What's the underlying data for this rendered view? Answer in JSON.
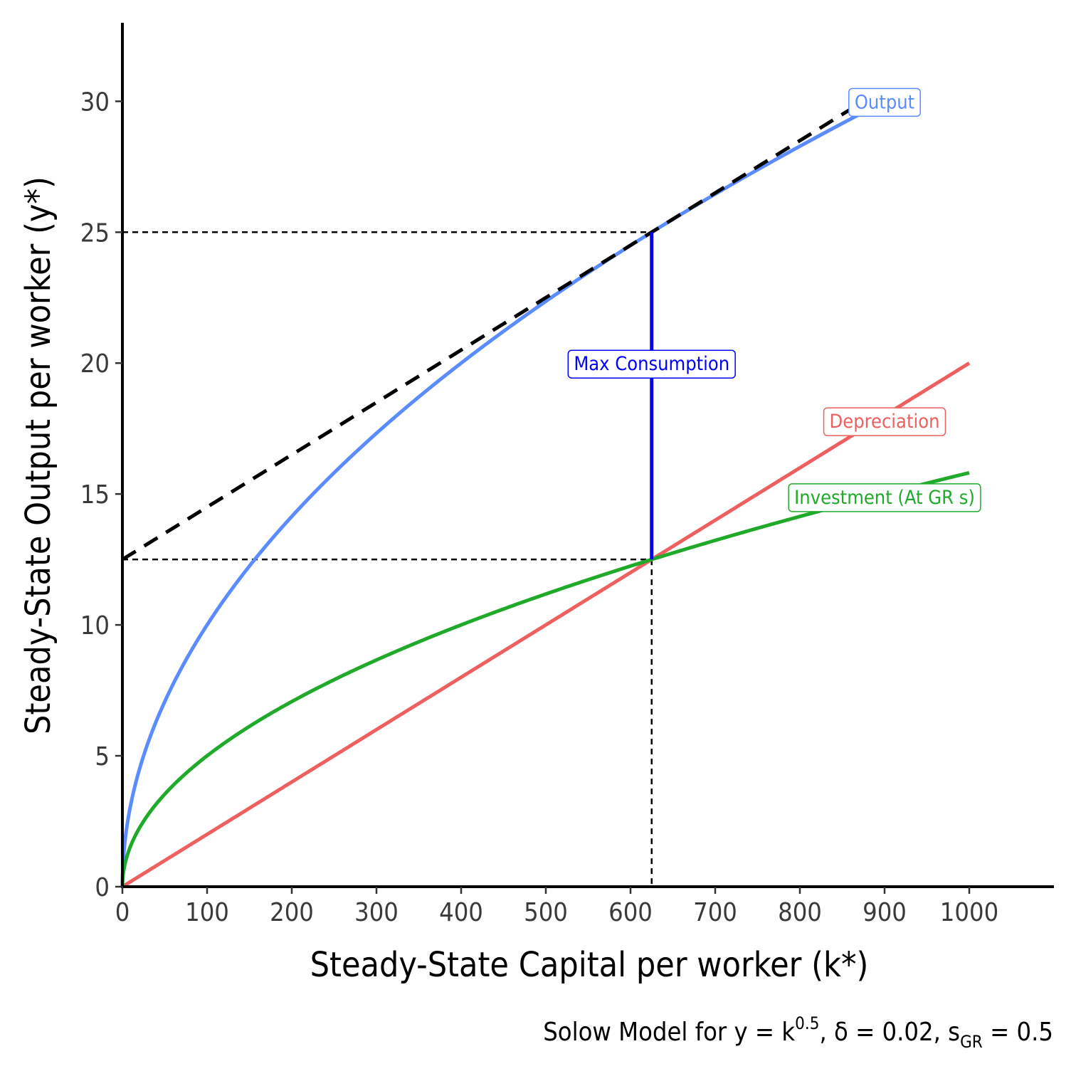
{
  "chart_data": {
    "type": "line",
    "xlabel": "Steady-State Capital per worker (k*)",
    "ylabel": "Steady-State Output per worker (y*)",
    "caption": {
      "prefix": "Solow Model for y = k",
      "exponent": "0.5",
      "delta_part": ", δ = 0.02, s",
      "subscript": "GR",
      "suffix": " = 0.5"
    },
    "xlim": [
      0,
      1100
    ],
    "ylim": [
      0,
      33
    ],
    "x_ticks": [
      0,
      100,
      200,
      300,
      400,
      500,
      600,
      700,
      800,
      900,
      1000
    ],
    "x_tick_labels": [
      "0",
      "100",
      "200",
      "300",
      "400",
      "500",
      "600",
      "700",
      "800",
      "900",
      "1000"
    ],
    "y_ticks": [
      0,
      5,
      10,
      15,
      20,
      25,
      30
    ],
    "y_tick_labels": [
      "0",
      "5",
      "10",
      "15",
      "20",
      "25",
      "30"
    ],
    "grid": false,
    "series": [
      {
        "name": "Output",
        "color": "#5b8cff",
        "function": "sqrt(k)",
        "k": [
          0,
          1,
          5,
          10,
          25,
          50,
          100,
          150,
          200,
          300,
          400,
          500,
          625,
          700,
          800,
          875
        ],
        "values": [
          0,
          1,
          2.24,
          3.16,
          5,
          7.07,
          10,
          12.25,
          14.14,
          17.32,
          20,
          22.36,
          25,
          26.46,
          28.28,
          29.58
        ]
      },
      {
        "name": "Depreciation",
        "color": "#ee6060",
        "function": "0.02*k",
        "k": [
          0,
          250,
          500,
          625,
          750,
          1000
        ],
        "values": [
          0,
          5,
          10,
          12.5,
          15,
          20
        ]
      },
      {
        "name": "Investment (At GR s)",
        "color": "#1faa2a",
        "function": "0.5*sqrt(k)",
        "k": [
          0,
          1,
          5,
          10,
          25,
          50,
          100,
          200,
          300,
          400,
          500,
          625,
          700,
          800,
          900,
          1000
        ],
        "values": [
          0,
          0.5,
          1.12,
          1.58,
          2.5,
          3.54,
          5,
          7.07,
          8.66,
          10,
          11.18,
          12.5,
          13.23,
          14.14,
          15,
          15.81
        ]
      }
    ],
    "tangent": {
      "color": "#000000",
      "style": "dashed",
      "k": [
        0,
        870
      ],
      "values": [
        12.5,
        29.9
      ]
    },
    "golden_rule": {
      "k": 625,
      "y": 25,
      "investment": 12.5
    },
    "max_consumption": {
      "label": "Max Consumption",
      "color": "#0000ff",
      "k": 625,
      "from": 12.5,
      "to": 25
    },
    "labels": {
      "Output": {
        "text": "Output",
        "color": "#5b8cff",
        "k": 900,
        "y": 30
      },
      "Depreciation": {
        "text": "Depreciation",
        "color": "#ee6060",
        "k": 900,
        "y": 17.8
      },
      "Investment (At GR s)": {
        "text": "Investment (At GR s)",
        "color": "#1faa2a",
        "k": 900,
        "y": 14.9
      },
      "Max Consumption": {
        "text": "Max Consumption",
        "color": "#0000ff",
        "k": 625,
        "y": 20
      }
    }
  }
}
